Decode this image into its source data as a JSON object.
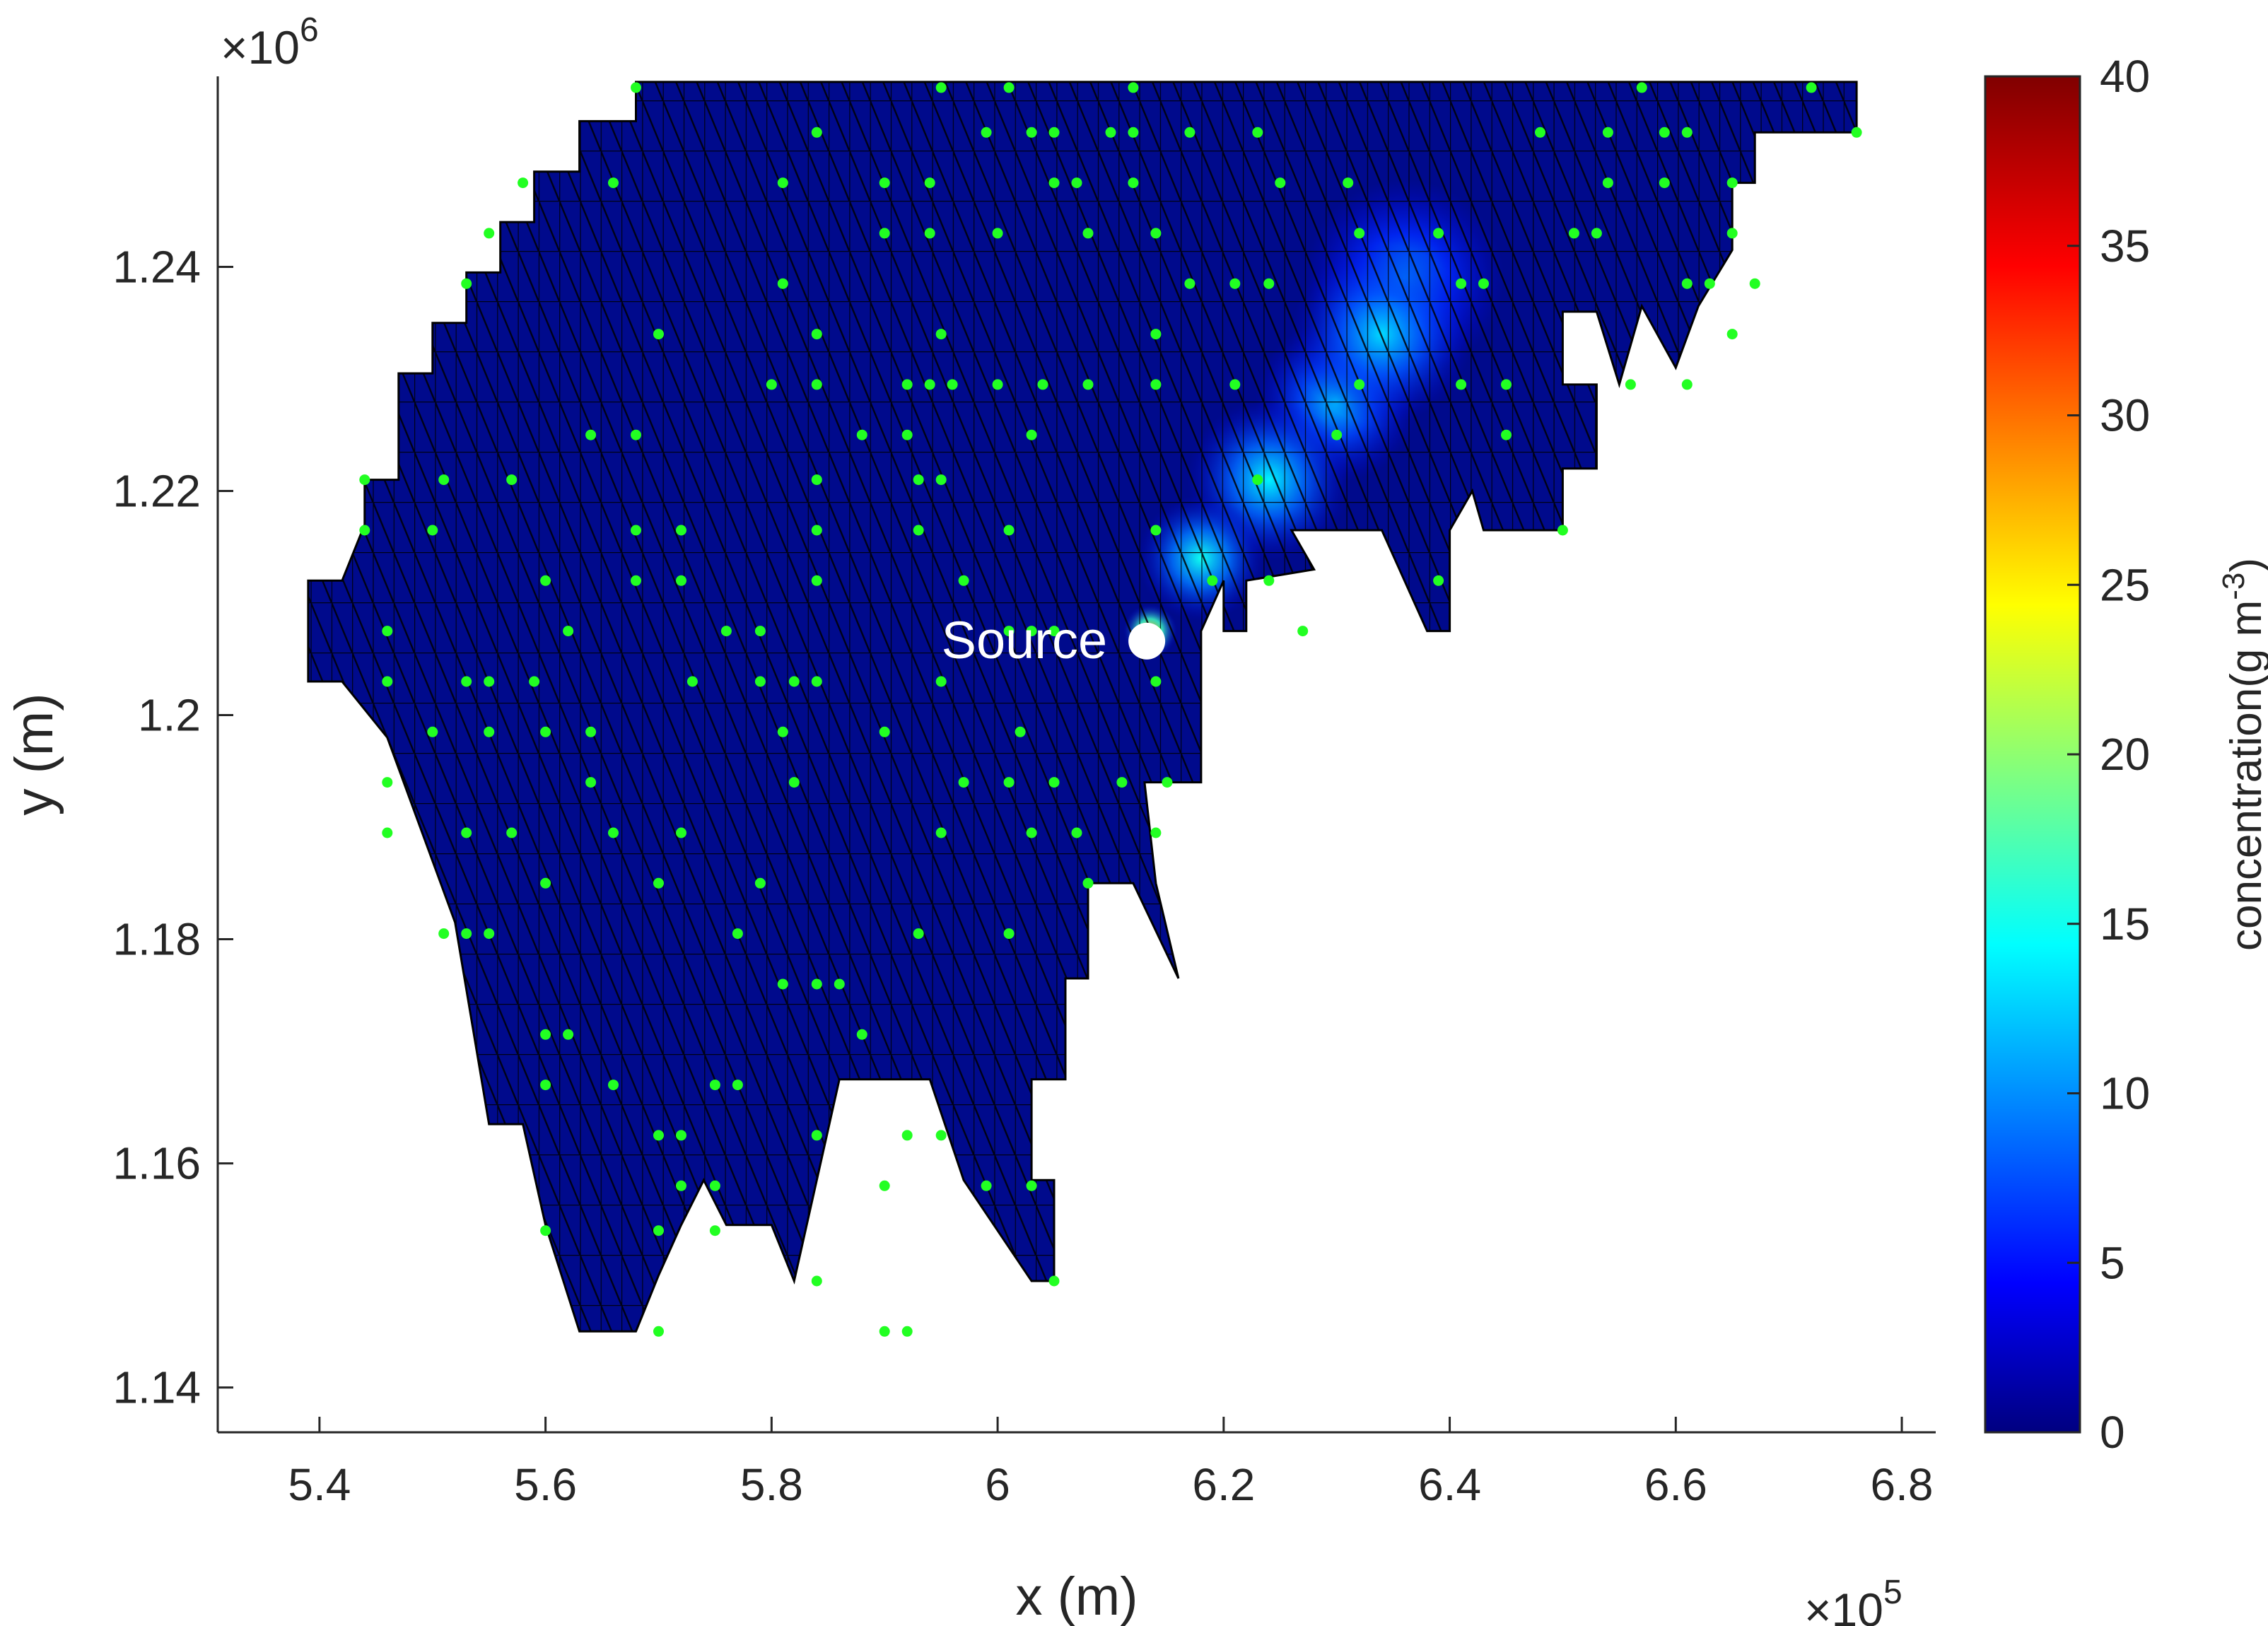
{
  "chart_data": {
    "type": "heatmap",
    "subtype": "triangular-mesh concentration field with sensor points",
    "xlabel": "x (m)",
    "ylabel": "y (m)",
    "x_multiplier": "10",
    "x_multiplier_exp": "5",
    "y_multiplier": "10",
    "y_multiplier_exp": "6",
    "xlim": [
      531000,
      683000
    ],
    "ylim": [
      1136000,
      1257000
    ],
    "x_ticks": [
      540000,
      560000,
      580000,
      600000,
      620000,
      640000,
      660000,
      680000
    ],
    "x_tick_labels": [
      "5.4",
      "5.6",
      "5.8",
      "6",
      "6.2",
      "6.4",
      "6.6",
      "6.8"
    ],
    "y_ticks": [
      1140000,
      1160000,
      1180000,
      1200000,
      1220000,
      1240000
    ],
    "y_tick_labels": [
      "1.14",
      "1.16",
      "1.18",
      "1.2",
      "1.22",
      "1.24"
    ],
    "grid": false,
    "domain_outline": [
      [
        568000,
        1256500
      ],
      [
        676000,
        1256500
      ],
      [
        676000,
        1252000
      ],
      [
        667000,
        1252000
      ],
      [
        667000,
        1247500
      ],
      [
        665000,
        1247500
      ],
      [
        665000,
        1241500
      ],
      [
        662000,
        1236500
      ],
      [
        660000,
        1231000
      ],
      [
        657000,
        1236500
      ],
      [
        655000,
        1229500
      ],
      [
        653000,
        1236000
      ],
      [
        650000,
        1236000
      ],
      [
        650000,
        1229500
      ],
      [
        653000,
        1229500
      ],
      [
        653000,
        1222000
      ],
      [
        650000,
        1222000
      ],
      [
        650000,
        1216500
      ],
      [
        643000,
        1216500
      ],
      [
        642000,
        1220000
      ],
      [
        640000,
        1216500
      ],
      [
        640000,
        1207500
      ],
      [
        638000,
        1207500
      ],
      [
        634000,
        1216500
      ],
      [
        626000,
        1216500
      ],
      [
        628000,
        1213000
      ],
      [
        622000,
        1212000
      ],
      [
        622000,
        1207500
      ],
      [
        620000,
        1207500
      ],
      [
        620000,
        1212000
      ],
      [
        618000,
        1207500
      ],
      [
        618000,
        1194000
      ],
      [
        613000,
        1194000
      ],
      [
        614000,
        1185000
      ],
      [
        616000,
        1176500
      ],
      [
        612000,
        1185000
      ],
      [
        608000,
        1185000
      ],
      [
        608000,
        1176500
      ],
      [
        606000,
        1176500
      ],
      [
        606000,
        1167500
      ],
      [
        603000,
        1167500
      ],
      [
        603000,
        1158500
      ],
      [
        605000,
        1158500
      ],
      [
        605000,
        1149500
      ],
      [
        603000,
        1149500
      ],
      [
        597000,
        1158500
      ],
      [
        594000,
        1167500
      ],
      [
        586000,
        1167500
      ],
      [
        584000,
        1158500
      ],
      [
        582000,
        1149500
      ],
      [
        580000,
        1154500
      ],
      [
        576000,
        1154500
      ],
      [
        574000,
        1158500
      ],
      [
        572000,
        1154500
      ],
      [
        570000,
        1150000
      ],
      [
        568000,
        1145000
      ],
      [
        563000,
        1145000
      ],
      [
        560000,
        1154500
      ],
      [
        558000,
        1163500
      ],
      [
        555000,
        1163500
      ],
      [
        552000,
        1181500
      ],
      [
        546000,
        1198000
      ],
      [
        542000,
        1203000
      ],
      [
        539000,
        1203000
      ],
      [
        539000,
        1212000
      ],
      [
        542000,
        1212000
      ],
      [
        544000,
        1217000
      ],
      [
        544000,
        1221000
      ],
      [
        547000,
        1221000
      ],
      [
        547000,
        1230500
      ],
      [
        550000,
        1230500
      ],
      [
        550000,
        1235000
      ],
      [
        553000,
        1235000
      ],
      [
        553000,
        1239500
      ],
      [
        556000,
        1239500
      ],
      [
        556000,
        1244000
      ],
      [
        559000,
        1244000
      ],
      [
        559000,
        1248500
      ],
      [
        563000,
        1248500
      ],
      [
        563000,
        1253000
      ],
      [
        568000,
        1253000
      ]
    ],
    "concentration_field": {
      "label": "concentration(g m",
      "unit_exp": "-3",
      "label_close": ")",
      "range": [
        0,
        40
      ],
      "ticks": [
        0,
        5,
        10,
        15,
        20,
        25,
        30,
        35,
        40
      ],
      "tick_labels": [
        "0",
        "5",
        "10",
        "15",
        "20",
        "25",
        "30",
        "35",
        "40"
      ],
      "colormap": "jet",
      "peak_value": 28,
      "hotspots": [
        {
          "x": 613500,
          "y": 1207500,
          "peak": 28,
          "spread": 1500
        },
        {
          "x": 618000,
          "y": 1214000,
          "peak": 15,
          "spread": 3500
        },
        {
          "x": 624000,
          "y": 1221000,
          "peak": 14,
          "spread": 4500
        },
        {
          "x": 630000,
          "y": 1228000,
          "peak": 12,
          "spread": 4500
        },
        {
          "x": 634000,
          "y": 1234000,
          "peak": 13,
          "spread": 5000
        },
        {
          "x": 636000,
          "y": 1239000,
          "peak": 10,
          "spread": 5500
        }
      ]
    },
    "source": {
      "label": "Source",
      "x": 613200,
      "y": 1206600
    },
    "sensor_color": "#22ff22",
    "sensors": [
      [
        568000,
        1256000
      ],
      [
        595000,
        1256000
      ],
      [
        601000,
        1256000
      ],
      [
        612000,
        1256000
      ],
      [
        657000,
        1256000
      ],
      [
        672000,
        1256000
      ],
      [
        584000,
        1252000
      ],
      [
        599000,
        1252000
      ],
      [
        603000,
        1252000
      ],
      [
        605000,
        1252000
      ],
      [
        610000,
        1252000
      ],
      [
        612000,
        1252000
      ],
      [
        617000,
        1252000
      ],
      [
        623000,
        1252000
      ],
      [
        648000,
        1252000
      ],
      [
        654000,
        1252000
      ],
      [
        659000,
        1252000
      ],
      [
        661000,
        1252000
      ],
      [
        676000,
        1252000
      ],
      [
        558000,
        1247500
      ],
      [
        566000,
        1247500
      ],
      [
        581000,
        1247500
      ],
      [
        590000,
        1247500
      ],
      [
        594000,
        1247500
      ],
      [
        605000,
        1247500
      ],
      [
        607000,
        1247500
      ],
      [
        612000,
        1247500
      ],
      [
        625000,
        1247500
      ],
      [
        631000,
        1247500
      ],
      [
        654000,
        1247500
      ],
      [
        659000,
        1247500
      ],
      [
        665000,
        1247500
      ],
      [
        555000,
        1243000
      ],
      [
        590000,
        1243000
      ],
      [
        594000,
        1243000
      ],
      [
        600000,
        1243000
      ],
      [
        608000,
        1243000
      ],
      [
        614000,
        1243000
      ],
      [
        632000,
        1243000
      ],
      [
        639000,
        1243000
      ],
      [
        651000,
        1243000
      ],
      [
        653000,
        1243000
      ],
      [
        665000,
        1243000
      ],
      [
        553000,
        1238500
      ],
      [
        581000,
        1238500
      ],
      [
        617000,
        1238500
      ],
      [
        621000,
        1238500
      ],
      [
        624000,
        1238500
      ],
      [
        641000,
        1238500
      ],
      [
        643000,
        1238500
      ],
      [
        661000,
        1238500
      ],
      [
        663000,
        1238500
      ],
      [
        667000,
        1238500
      ],
      [
        570000,
        1234000
      ],
      [
        584000,
        1234000
      ],
      [
        595000,
        1234000
      ],
      [
        614000,
        1234000
      ],
      [
        665000,
        1234000
      ],
      [
        580000,
        1229500
      ],
      [
        584000,
        1229500
      ],
      [
        592000,
        1229500
      ],
      [
        594000,
        1229500
      ],
      [
        596000,
        1229500
      ],
      [
        600000,
        1229500
      ],
      [
        604000,
        1229500
      ],
      [
        608000,
        1229500
      ],
      [
        614000,
        1229500
      ],
      [
        621000,
        1229500
      ],
      [
        632000,
        1229500
      ],
      [
        641000,
        1229500
      ],
      [
        645000,
        1229500
      ],
      [
        656000,
        1229500
      ],
      [
        661000,
        1229500
      ],
      [
        564000,
        1225000
      ],
      [
        568000,
        1225000
      ],
      [
        588000,
        1225000
      ],
      [
        592000,
        1225000
      ],
      [
        603000,
        1225000
      ],
      [
        630000,
        1225000
      ],
      [
        645000,
        1225000
      ],
      [
        544000,
        1221000
      ],
      [
        551000,
        1221000
      ],
      [
        557000,
        1221000
      ],
      [
        584000,
        1221000
      ],
      [
        593000,
        1221000
      ],
      [
        595000,
        1221000
      ],
      [
        623000,
        1221000
      ],
      [
        544000,
        1216500
      ],
      [
        550000,
        1216500
      ],
      [
        568000,
        1216500
      ],
      [
        572000,
        1216500
      ],
      [
        584000,
        1216500
      ],
      [
        593000,
        1216500
      ],
      [
        601000,
        1216500
      ],
      [
        614000,
        1216500
      ],
      [
        650000,
        1216500
      ],
      [
        560000,
        1212000
      ],
      [
        568000,
        1212000
      ],
      [
        572000,
        1212000
      ],
      [
        584000,
        1212000
      ],
      [
        597000,
        1212000
      ],
      [
        619000,
        1212000
      ],
      [
        624000,
        1212000
      ],
      [
        639000,
        1212000
      ],
      [
        546000,
        1207500
      ],
      [
        562000,
        1207500
      ],
      [
        576000,
        1207500
      ],
      [
        579000,
        1207500
      ],
      [
        601000,
        1207500
      ],
      [
        603000,
        1207500
      ],
      [
        605000,
        1207500
      ],
      [
        614000,
        1207500
      ],
      [
        627000,
        1207500
      ],
      [
        546000,
        1203000
      ],
      [
        553000,
        1203000
      ],
      [
        555000,
        1203000
      ],
      [
        559000,
        1203000
      ],
      [
        573000,
        1203000
      ],
      [
        579000,
        1203000
      ],
      [
        582000,
        1203000
      ],
      [
        584000,
        1203000
      ],
      [
        595000,
        1203000
      ],
      [
        614000,
        1203000
      ],
      [
        550000,
        1198500
      ],
      [
        555000,
        1198500
      ],
      [
        560000,
        1198500
      ],
      [
        564000,
        1198500
      ],
      [
        581000,
        1198500
      ],
      [
        590000,
        1198500
      ],
      [
        602000,
        1198500
      ],
      [
        546000,
        1194000
      ],
      [
        564000,
        1194000
      ],
      [
        582000,
        1194000
      ],
      [
        597000,
        1194000
      ],
      [
        601000,
        1194000
      ],
      [
        605000,
        1194000
      ],
      [
        611000,
        1194000
      ],
      [
        615000,
        1194000
      ],
      [
        546000,
        1189500
      ],
      [
        553000,
        1189500
      ],
      [
        557000,
        1189500
      ],
      [
        566000,
        1189500
      ],
      [
        572000,
        1189500
      ],
      [
        595000,
        1189500
      ],
      [
        603000,
        1189500
      ],
      [
        607000,
        1189500
      ],
      [
        614000,
        1189500
      ],
      [
        560000,
        1185000
      ],
      [
        570000,
        1185000
      ],
      [
        579000,
        1185000
      ],
      [
        608000,
        1185000
      ],
      [
        551000,
        1180500
      ],
      [
        553000,
        1180500
      ],
      [
        555000,
        1180500
      ],
      [
        577000,
        1180500
      ],
      [
        593000,
        1180500
      ],
      [
        601000,
        1180500
      ],
      [
        581000,
        1176000
      ],
      [
        584000,
        1176000
      ],
      [
        586000,
        1176000
      ],
      [
        560000,
        1171500
      ],
      [
        562000,
        1171500
      ],
      [
        588000,
        1171500
      ],
      [
        560000,
        1167000
      ],
      [
        566000,
        1167000
      ],
      [
        575000,
        1167000
      ],
      [
        577000,
        1167000
      ],
      [
        570000,
        1162500
      ],
      [
        572000,
        1162500
      ],
      [
        584000,
        1162500
      ],
      [
        592000,
        1162500
      ],
      [
        595000,
        1162500
      ],
      [
        572000,
        1158000
      ],
      [
        575000,
        1158000
      ],
      [
        590000,
        1158000
      ],
      [
        599000,
        1158000
      ],
      [
        603000,
        1158000
      ],
      [
        560000,
        1154000
      ],
      [
        570000,
        1154000
      ],
      [
        575000,
        1154000
      ],
      [
        584000,
        1149500
      ],
      [
        605000,
        1149500
      ],
      [
        570000,
        1145000
      ],
      [
        590000,
        1145000
      ],
      [
        592000,
        1145000
      ]
    ]
  }
}
